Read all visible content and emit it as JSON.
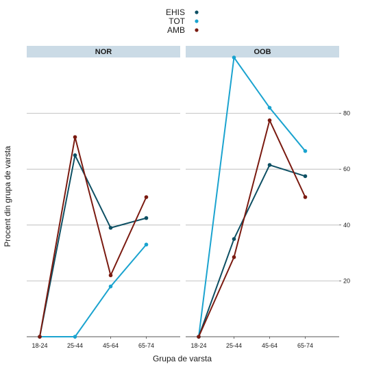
{
  "colors": {
    "EHIS": "#0d4f63",
    "TOT": "#1aa3cf",
    "AMB": "#7a1a10",
    "strip_bg": "#cbdbe6",
    "grid": "#b3b3b3"
  },
  "chart_data": {
    "type": "line",
    "xlabel": "Grupa de varsta",
    "ylabel": "Procent din grupa de varsta",
    "categories": [
      "18-24",
      "25-44",
      "45-64",
      "65-74"
    ],
    "ylim": [
      0,
      100
    ],
    "yticks": [
      20,
      40,
      60,
      80
    ],
    "y_axis_side": "right",
    "grid": "horizontal",
    "legend": {
      "placement": "top-center",
      "entries": [
        "EHIS",
        "TOT",
        "AMB"
      ]
    },
    "panels": [
      {
        "title": "NOR",
        "series": [
          {
            "name": "EHIS",
            "values": [
              0,
              65,
              39,
              42.5
            ]
          },
          {
            "name": "TOT",
            "values": [
              0,
              0,
              18,
              33
            ]
          },
          {
            "name": "AMB",
            "values": [
              0,
              71.5,
              22,
              50
            ]
          }
        ]
      },
      {
        "title": "OOB",
        "series": [
          {
            "name": "EHIS",
            "values": [
              0,
              35,
              61.5,
              57.5
            ]
          },
          {
            "name": "TOT",
            "values": [
              0,
              100,
              82,
              66.5
            ]
          },
          {
            "name": "AMB",
            "values": [
              0,
              28.5,
              77.5,
              50
            ]
          }
        ]
      }
    ]
  }
}
